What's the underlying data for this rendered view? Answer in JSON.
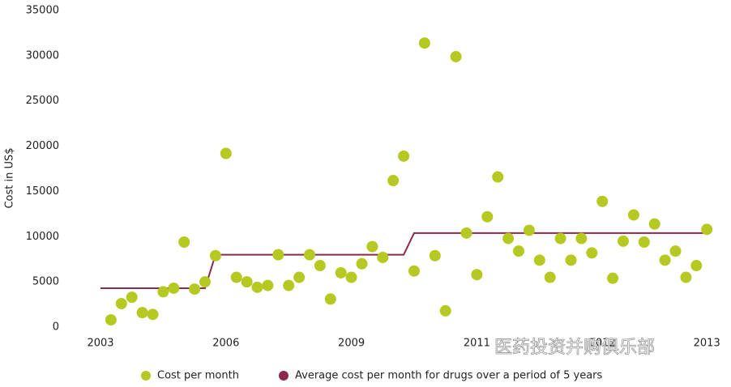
{
  "chart_data": {
    "type": "scatter",
    "ylabel": "Cost in US$",
    "categories": [
      "2003",
      null,
      null,
      null,
      null,
      null,
      null,
      null,
      null,
      null,
      null,
      null,
      "2006",
      null,
      null,
      null,
      null,
      null,
      null,
      null,
      null,
      null,
      null,
      null,
      "2009",
      null,
      null,
      null,
      null,
      null,
      null,
      null,
      null,
      null,
      null,
      null,
      "2011",
      null,
      null,
      null,
      null,
      null,
      null,
      null,
      null,
      null,
      null,
      null,
      "2012",
      null,
      null,
      null,
      null,
      null,
      null,
      null,
      null,
      null,
      "2013"
    ],
    "series": [
      {
        "name": "Cost per month",
        "color": "#b5c922",
        "kind": "points",
        "values": [
          null,
          800,
          2600,
          3300,
          1600,
          1400,
          3900,
          4300,
          9400,
          4200,
          5000,
          7900,
          19200,
          5500,
          5000,
          4400,
          4600,
          8000,
          4600,
          5500,
          8000,
          6800,
          3100,
          6000,
          5500,
          7000,
          8900,
          7700,
          16200,
          18900,
          6200,
          31400,
          7900,
          1800,
          29900,
          10400,
          5800,
          12200,
          16600,
          9800,
          8400,
          10700,
          7400,
          5500,
          9800,
          7400,
          9800,
          8200,
          13900,
          5400,
          9500,
          12400,
          9400,
          11400,
          7400,
          8400,
          5500,
          6800,
          10800
        ]
      },
      {
        "name": "Average cost per month for drugs over a period of 5 years",
        "color": "#8b2a4e",
        "kind": "line",
        "values": [
          4300,
          4300,
          4300,
          4300,
          4300,
          4300,
          4300,
          4300,
          4300,
          4300,
          4300,
          8000,
          8000,
          8000,
          8000,
          8000,
          8000,
          8000,
          8000,
          8000,
          8000,
          8000,
          8000,
          8000,
          8000,
          8000,
          8000,
          8000,
          8000,
          8000,
          10400,
          10400,
          10400,
          10400,
          10400,
          10400,
          10400,
          10400,
          10400,
          10400,
          10400,
          10400,
          10400,
          10400,
          10400,
          10400,
          10400,
          10400,
          10400,
          10400,
          10400,
          10400,
          10400,
          10400,
          10400,
          10400,
          10400,
          10400,
          10400
        ]
      }
    ],
    "ylim": [
      0,
      35000
    ],
    "yticks": [
      0,
      5000,
      10000,
      15000,
      20000,
      25000,
      30000,
      35000
    ],
    "grid": false,
    "legend": "bottom",
    "watermark": "医药投资并购俱乐部"
  }
}
